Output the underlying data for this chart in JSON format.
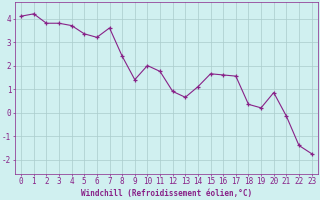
{
  "x": [
    0,
    1,
    2,
    3,
    4,
    5,
    6,
    7,
    8,
    9,
    10,
    11,
    12,
    13,
    14,
    15,
    16,
    17,
    18,
    19,
    20,
    21,
    22,
    23
  ],
  "y": [
    4.1,
    4.2,
    3.8,
    3.8,
    3.7,
    3.35,
    3.2,
    3.6,
    2.4,
    1.4,
    2.0,
    1.75,
    0.9,
    0.65,
    1.1,
    1.65,
    1.6,
    1.55,
    0.35,
    0.2,
    0.85,
    -0.15,
    -1.4,
    -1.75
  ],
  "line_color": "#882288",
  "marker_color": "#882288",
  "bg_color": "#d0f0f0",
  "grid_color": "#aacccc",
  "xlabel": "Windchill (Refroidissement éolien,°C)",
  "ylim": [
    -2.6,
    4.7
  ],
  "xlim": [
    -0.5,
    23.5
  ],
  "yticks": [
    -2,
    -1,
    0,
    1,
    2,
    3,
    4
  ],
  "xticks": [
    0,
    1,
    2,
    3,
    4,
    5,
    6,
    7,
    8,
    9,
    10,
    11,
    12,
    13,
    14,
    15,
    16,
    17,
    18,
    19,
    20,
    21,
    22,
    23
  ],
  "tick_color": "#882288",
  "label_fontsize": 5.5,
  "tick_fontsize": 5.5
}
